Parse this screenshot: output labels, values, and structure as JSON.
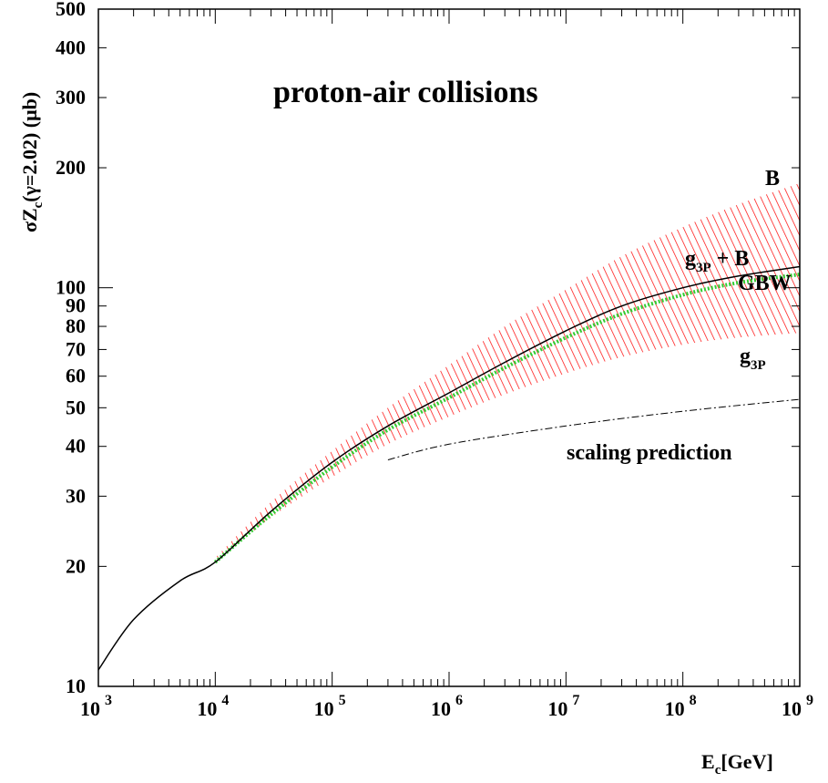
{
  "chart_data": {
    "type": "line",
    "title": "proton-air collisions",
    "xlabel": {
      "main": "E",
      "sub": "c",
      "rest": "[GeV]"
    },
    "ylabel": {
      "pre": "σZ",
      "sub": "c",
      "rest": "(γ=2.02) (μb)"
    },
    "xscale": "log",
    "yscale": "log",
    "xlim": [
      1000,
      1000000000
    ],
    "ylim": [
      10,
      500
    ],
    "x_ticks": [
      {
        "base": "10",
        "exp": "3"
      },
      {
        "base": "10",
        "exp": "4"
      },
      {
        "base": "10",
        "exp": "5"
      },
      {
        "base": "10",
        "exp": "6"
      },
      {
        "base": "10",
        "exp": "7"
      },
      {
        "base": "10",
        "exp": "8"
      },
      {
        "base": "10",
        "exp": "9"
      }
    ],
    "y_tick_values": [
      10,
      20,
      30,
      40,
      50,
      60,
      70,
      80,
      90,
      100,
      200,
      300,
      400,
      500
    ],
    "y_tick_labels": [
      "10",
      "20",
      "30",
      "40",
      "50",
      "60",
      "70",
      "80",
      "90",
      "100",
      "200",
      "300",
      "400",
      "500"
    ],
    "annotations": {
      "b": "B",
      "g3p_b": {
        "main": "g",
        "sub": "3P",
        "rest": " + B"
      },
      "gbw": "GBW",
      "g3p": {
        "main": "g",
        "sub": "3P"
      },
      "scaling": "scaling prediction"
    },
    "series": [
      {
        "key": "main",
        "style": "solid",
        "color": "#000000",
        "x": [
          1000,
          2000,
          5000,
          10000,
          30000,
          100000,
          300000,
          1000000,
          3000000,
          10000000,
          30000000,
          100000000,
          300000000,
          1000000000
        ],
        "y": [
          11,
          14.7,
          18.4,
          20.5,
          27.5,
          36.5,
          45,
          54.5,
          65,
          78,
          90,
          100,
          107,
          113
        ]
      },
      {
        "key": "band_upper",
        "style": "band",
        "color": "#ff0000",
        "x": [
          10000,
          30000,
          100000,
          300000,
          1000000,
          3000000,
          10000000,
          30000000,
          100000000,
          300000000,
          1000000000
        ],
        "y": [
          21,
          29,
          39,
          50,
          64,
          80,
          99,
          120,
          142,
          162,
          183
        ]
      },
      {
        "key": "band_lower",
        "style": "band",
        "color": "#ff0000",
        "x": [
          10000,
          30000,
          100000,
          300000,
          1000000,
          3000000,
          10000000,
          30000000,
          100000000,
          300000000,
          1000000000
        ],
        "y": [
          20.5,
          26.5,
          33.5,
          40.5,
          47.5,
          54,
          61,
          67,
          72,
          75,
          77
        ]
      },
      {
        "key": "gbw",
        "style": "dotted",
        "color": "#33cc33",
        "x": [
          10000,
          30000,
          100000,
          300000,
          1000000,
          3000000,
          10000000,
          30000000,
          100000000,
          300000000,
          1000000000
        ],
        "y": [
          20.5,
          27,
          35.5,
          44,
          53,
          63,
          75,
          86,
          96,
          103,
          108
        ]
      },
      {
        "key": "scaling",
        "style": "dashdot",
        "color": "#000000",
        "x": [
          300000,
          1000000,
          10000000,
          100000000,
          1000000000
        ],
        "y": [
          37,
          40.5,
          45,
          49,
          52.5
        ]
      }
    ],
    "grid": false
  }
}
